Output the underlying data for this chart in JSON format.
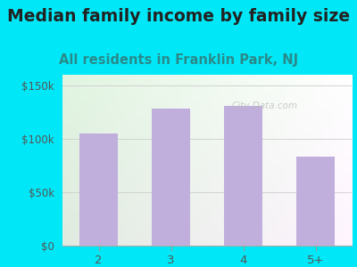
{
  "categories": [
    "2",
    "3",
    "4",
    "5+"
  ],
  "values": [
    105000,
    128000,
    131000,
    83000
  ],
  "bar_color": "#c0aedd",
  "title": "Median family income by family size",
  "subtitle": "All residents in Franklin Park, NJ",
  "title_fontsize": 13.5,
  "subtitle_fontsize": 10.5,
  "title_color": "#222222",
  "subtitle_color": "#2a8a8a",
  "ytick_color": "#555555",
  "xtick_color": "#555555",
  "background_outer": "#00e8f8",
  "ylim": [
    0,
    160000
  ],
  "yticks": [
    0,
    50000,
    100000,
    150000
  ],
  "ytick_labels": [
    "$0",
    "$50k",
    "$100k",
    "$150k"
  ],
  "watermark": "City-Data.com"
}
